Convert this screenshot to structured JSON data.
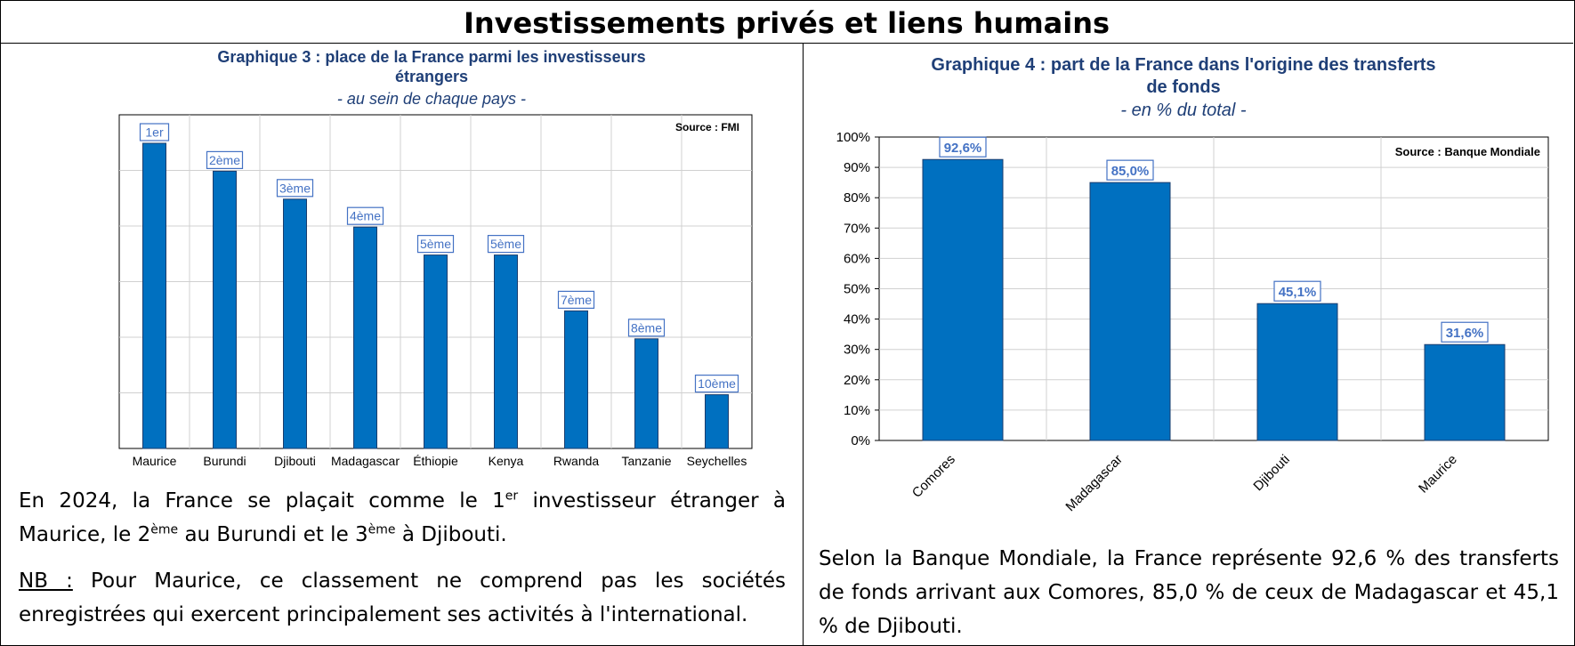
{
  "page_title": "Investissements privés et liens humains",
  "left": {
    "title_line1": "Graphique 3 : place de la France parmi les investisseurs",
    "title_line2": "étrangers",
    "subtitle": "- au sein de chaque pays -",
    "source": "Source : FMI",
    "para1": {
      "a": "En 2024, la France se plaçait comme le 1",
      "sup1": "er",
      "b": " investisseur étranger à Maurice, le 2",
      "sup2": "ème",
      "c": " au Burundi et le 3",
      "sup3": "ème",
      "d": " à Djibouti."
    },
    "para2": {
      "nb": "NB :",
      "text": " Pour Maurice, ce classement ne comprend pas les sociétés enregistrées qui exercent principalement ses activités à l'international."
    }
  },
  "right": {
    "title_line1": "Graphique 4 : part de la France dans l'origine des transferts",
    "title_line2": "de fonds",
    "subtitle": "- en % du total -",
    "source": "Source : Banque Mondiale",
    "para": "Selon la Banque Mondiale, la France représente 92,6 % des transferts de fonds arrivant aux Comores, 85,0 % de ceux de Madagascar et 45,1 % de Djibouti."
  },
  "colors": {
    "bar": "#0070c0",
    "title": "#1f3f77",
    "label": "#4472c4"
  },
  "chart_data": [
    {
      "type": "bar",
      "title": "Graphique 3 : place de la France parmi les investisseurs étrangers",
      "subtitle": "- au sein de chaque pays -",
      "categories": [
        "Maurice",
        "Burundi",
        "Djibouti",
        "Madagascar",
        "Éthiopie",
        "Kenya",
        "Rwanda",
        "Tanzanie",
        "Seychelles"
      ],
      "values": [
        1,
        2,
        3,
        4,
        5,
        5,
        7,
        8,
        10
      ],
      "data_labels": [
        "1er",
        "2ème",
        "3ème",
        "4ème",
        "5ème",
        "5ème",
        "7ème",
        "8ème",
        "10ème"
      ],
      "note": "Bar height is inversely related to rank (1er tallest, 10ème shortest); y-axis unlabeled",
      "grid": true,
      "source": "Source : FMI"
    },
    {
      "type": "bar",
      "title": "Graphique 4 : part de la France dans l'origine des transferts de fonds",
      "subtitle": "- en % du total -",
      "categories": [
        "Comores",
        "Madagascar",
        "Djibouti",
        "Maurice"
      ],
      "values": [
        92.6,
        85.0,
        45.1,
        31.6
      ],
      "data_labels": [
        "92,6%",
        "85,0%",
        "45,1%",
        "31,6%"
      ],
      "ylim": [
        0,
        100
      ],
      "yticks": [
        "0%",
        "10%",
        "20%",
        "30%",
        "40%",
        "50%",
        "60%",
        "70%",
        "80%",
        "90%",
        "100%"
      ],
      "grid": true,
      "source": "Source : Banque Mondiale"
    }
  ]
}
